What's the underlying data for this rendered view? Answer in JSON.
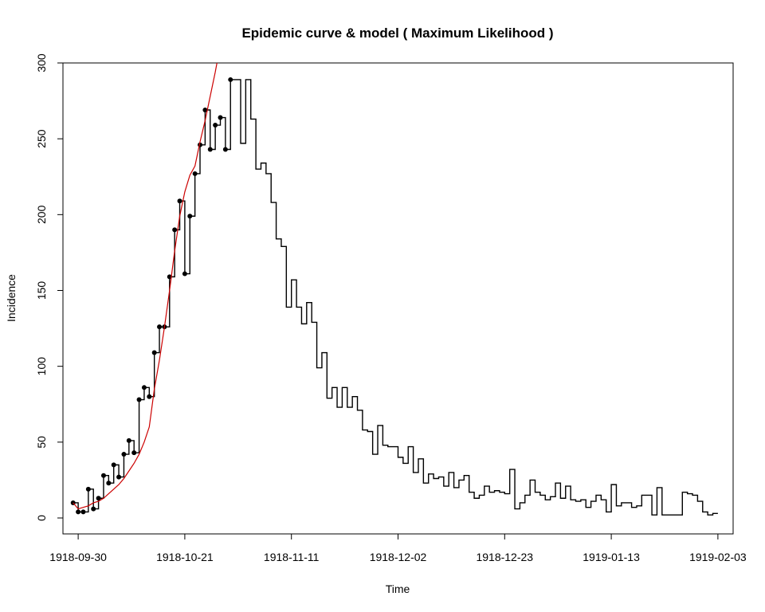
{
  "chart_data": {
    "type": "line",
    "title": "Epidemic curve & model ( Maximum Likelihood )",
    "xlabel": "Time",
    "ylabel": "Incidence",
    "ylim": [
      0,
      300
    ],
    "xlim": [
      "1918-09-27",
      "1919-02-06"
    ],
    "grid": false,
    "legend": "none",
    "x_ticks": [
      "1918-09-30",
      "1918-10-21",
      "1918-11-11",
      "1918-12-02",
      "1918-12-23",
      "1919-01-13",
      "1919-02-03"
    ],
    "y_ticks": [
      0,
      50,
      100,
      150,
      200,
      250,
      300
    ],
    "start_date": "1918-09-29",
    "series": [
      {
        "style": "step",
        "color": "#000000",
        "values": [
          10,
          4,
          4,
          19,
          6,
          13,
          28,
          23,
          35,
          27,
          42,
          51,
          43,
          78,
          86,
          80,
          109,
          126,
          126,
          159,
          190,
          209,
          161,
          199,
          227,
          246,
          269,
          243,
          259,
          264,
          243,
          289,
          289,
          247,
          289,
          263,
          230,
          234,
          227,
          208,
          184,
          179,
          139,
          157,
          139,
          128,
          142,
          129,
          99,
          109,
          79,
          86,
          73,
          86,
          73,
          80,
          71,
          58,
          57,
          42,
          61,
          48,
          47,
          47,
          40,
          36,
          47,
          30,
          39,
          23,
          29,
          26,
          27,
          21,
          30,
          20,
          25,
          28,
          17,
          13,
          15,
          21,
          17,
          18,
          17,
          16,
          32,
          6,
          10,
          15,
          25,
          17,
          15,
          12,
          14,
          23,
          13,
          21,
          12,
          11,
          12,
          7,
          11,
          15,
          12,
          4,
          22,
          8,
          10,
          10,
          7,
          8,
          15,
          15,
          2,
          20,
          2,
          2,
          2,
          2,
          17,
          16,
          15,
          11,
          4,
          2,
          3
        ]
      },
      {
        "style": "points",
        "color": "#000000",
        "values": [
          10,
          4,
          4,
          19,
          6,
          13,
          28,
          23,
          35,
          27,
          42,
          51,
          43,
          78,
          86,
          80,
          109,
          126,
          126,
          159,
          190,
          209,
          161,
          199,
          227,
          246,
          269,
          243,
          259,
          264,
          243,
          289
        ]
      },
      {
        "style": "line",
        "color": "#cc0000",
        "values": [
          10,
          6,
          7,
          8,
          10,
          11,
          13,
          16,
          19,
          22,
          26,
          31,
          36,
          42,
          50,
          60,
          85,
          104,
          126,
          150,
          176,
          199,
          215,
          226,
          232,
          248,
          262,
          278,
          294,
          312
        ]
      }
    ]
  }
}
